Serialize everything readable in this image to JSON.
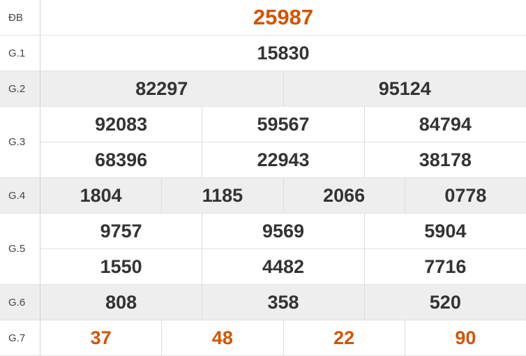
{
  "colors": {
    "highlight": "#d35400",
    "text": "#333333",
    "row_alt": "#eeeeee"
  },
  "prizes": [
    {
      "label": "ĐB",
      "lines": [
        [
          "25987"
        ]
      ]
    },
    {
      "label": "G.1",
      "lines": [
        [
          "15830"
        ]
      ]
    },
    {
      "label": "G.2",
      "lines": [
        [
          "82297",
          "95124"
        ]
      ]
    },
    {
      "label": "G.3",
      "lines": [
        [
          "92083",
          "59567",
          "84794"
        ],
        [
          "68396",
          "22943",
          "38178"
        ]
      ]
    },
    {
      "label": "G.4",
      "lines": [
        [
          "1804",
          "1185",
          "2066",
          "0778"
        ]
      ]
    },
    {
      "label": "G.5",
      "lines": [
        [
          "9757",
          "9569",
          "5904"
        ],
        [
          "1550",
          "4482",
          "7716"
        ]
      ]
    },
    {
      "label": "G.6",
      "lines": [
        [
          "808",
          "358",
          "520"
        ]
      ]
    },
    {
      "label": "G.7",
      "lines": [
        [
          "37",
          "48",
          "22",
          "90"
        ]
      ]
    }
  ]
}
